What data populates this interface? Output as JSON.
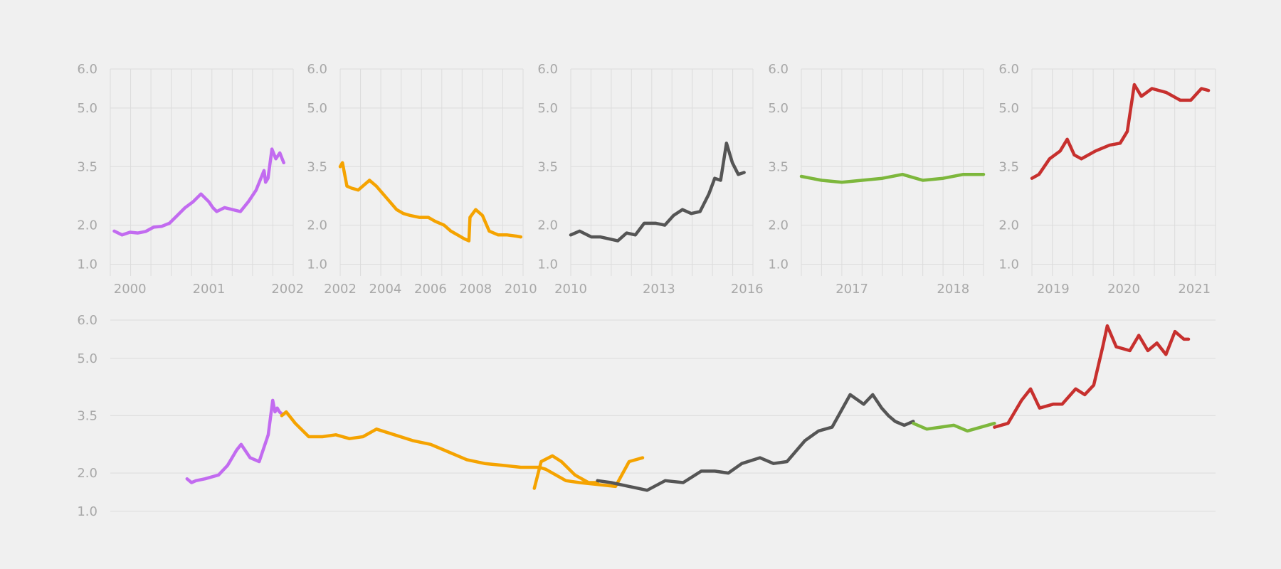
{
  "palette": [
    "#c26bf0",
    "#f5a300",
    "#555555",
    "#7db73c",
    "#c7302e"
  ],
  "chart_data": [
    {
      "type": "line",
      "panel": "small-1",
      "xlim": [
        1999.75,
        2002.07
      ],
      "ylim": [
        0.7,
        6.0
      ],
      "yticks": [
        1.0,
        2.0,
        3.5,
        5.0,
        6.0
      ],
      "xticks": [
        2000,
        2001,
        2002
      ],
      "grid": true,
      "series": [
        {
          "color": "#c26bf0",
          "x": [
            1999.8,
            1999.9,
            2000.0,
            2000.1,
            2000.2,
            2000.3,
            2000.4,
            2000.5,
            2000.6,
            2000.7,
            2000.8,
            2000.9,
            2001.0,
            2001.05,
            2001.1,
            2001.2,
            2001.3,
            2001.4,
            2001.5,
            2001.6,
            2001.7,
            2001.72,
            2001.75,
            2001.8,
            2001.85,
            2001.9,
            2001.95
          ],
          "y": [
            1.85,
            1.75,
            1.82,
            1.8,
            1.84,
            1.95,
            1.97,
            2.05,
            2.25,
            2.45,
            2.6,
            2.8,
            2.6,
            2.45,
            2.35,
            2.45,
            2.4,
            2.35,
            2.6,
            2.9,
            3.4,
            3.1,
            3.2,
            3.95,
            3.7,
            3.85,
            3.6
          ]
        }
      ]
    },
    {
      "type": "line",
      "panel": "small-2",
      "xlim": [
        2002.0,
        2010.1
      ],
      "ylim": [
        0.7,
        6.0
      ],
      "yticks": [
        1.0,
        2.0,
        3.5,
        5.0,
        6.0
      ],
      "xticks": [
        2002,
        2004,
        2006,
        2008,
        2010
      ],
      "grid": true,
      "series": [
        {
          "color": "#f5a300",
          "x": [
            2002.0,
            2002.1,
            2002.3,
            2002.5,
            2002.8,
            2003.0,
            2003.3,
            2003.6,
            2003.9,
            2004.2,
            2004.5,
            2004.8,
            2005.1,
            2005.5,
            2005.9,
            2006.2,
            2006.6,
            2006.9,
            2007.2,
            2007.5,
            2007.7,
            2007.75,
            2008.0,
            2008.3,
            2008.6,
            2009.0,
            2009.4,
            2009.8,
            2010.0
          ],
          "y": [
            3.5,
            3.6,
            3.0,
            2.95,
            2.9,
            3.0,
            3.15,
            3.0,
            2.8,
            2.6,
            2.4,
            2.3,
            2.25,
            2.2,
            2.2,
            2.1,
            2.0,
            1.85,
            1.75,
            1.65,
            1.6,
            2.2,
            2.4,
            2.25,
            1.85,
            1.75,
            1.75,
            1.72,
            1.7
          ]
        }
      ]
    },
    {
      "type": "line",
      "panel": "small-3",
      "xlim": [
        2010.0,
        2016.2
      ],
      "ylim": [
        0.7,
        6.0
      ],
      "yticks": [
        1.0,
        2.0,
        3.5,
        5.0,
        6.0
      ],
      "xticks": [
        2010,
        2013,
        2016
      ],
      "grid": true,
      "series": [
        {
          "color": "#555555",
          "x": [
            2010.0,
            2010.3,
            2010.7,
            2011.0,
            2011.3,
            2011.6,
            2011.9,
            2012.2,
            2012.5,
            2012.9,
            2013.2,
            2013.5,
            2013.8,
            2014.1,
            2014.4,
            2014.7,
            2014.9,
            2015.1,
            2015.3,
            2015.5,
            2015.7,
            2015.9
          ],
          "y": [
            1.75,
            1.85,
            1.7,
            1.7,
            1.65,
            1.6,
            1.8,
            1.75,
            2.05,
            2.05,
            2.0,
            2.25,
            2.4,
            2.3,
            2.35,
            2.8,
            3.2,
            3.15,
            4.1,
            3.6,
            3.3,
            3.35
          ]
        }
      ]
    },
    {
      "type": "line",
      "panel": "small-4",
      "xlim": [
        2016.5,
        2018.3
      ],
      "ylim": [
        0.7,
        6.0
      ],
      "yticks": [
        1.0,
        2.0,
        3.5,
        5.0,
        6.0
      ],
      "xticks": [
        2017,
        2018
      ],
      "grid": true,
      "series": [
        {
          "color": "#7db73c",
          "x": [
            2016.5,
            2016.7,
            2016.9,
            2017.1,
            2017.3,
            2017.5,
            2017.7,
            2017.9,
            2018.1,
            2018.3
          ],
          "y": [
            3.25,
            3.15,
            3.1,
            3.15,
            3.2,
            3.3,
            3.15,
            3.2,
            3.3,
            3.3
          ]
        }
      ]
    },
    {
      "type": "line",
      "panel": "small-5",
      "xlim": [
        2018.7,
        2021.3
      ],
      "ylim": [
        0.7,
        6.0
      ],
      "yticks": [
        1.0,
        2.0,
        3.5,
        5.0,
        6.0
      ],
      "xticks": [
        2019,
        2020,
        2021
      ],
      "grid": true,
      "series": [
        {
          "color": "#c7302e",
          "x": [
            2018.7,
            2018.8,
            2018.95,
            2019.1,
            2019.2,
            2019.3,
            2019.4,
            2019.6,
            2019.8,
            2019.95,
            2020.05,
            2020.15,
            2020.25,
            2020.4,
            2020.6,
            2020.8,
            2020.95,
            2021.1,
            2021.2
          ],
          "y": [
            3.2,
            3.3,
            3.7,
            3.9,
            4.2,
            3.8,
            3.7,
            3.9,
            4.05,
            4.1,
            4.4,
            5.6,
            5.3,
            5.5,
            5.4,
            5.2,
            5.2,
            5.5,
            5.45
          ]
        }
      ]
    },
    {
      "type": "line",
      "panel": "combined",
      "xlim": [
        1998.2,
        2022.7
      ],
      "ylim": [
        0.7,
        6.0
      ],
      "yticks": [
        1.0,
        2.0,
        3.5,
        5.0,
        6.0
      ],
      "xticks": [],
      "grid": "horizontal",
      "series": [
        {
          "color": "#c26bf0",
          "x": [
            1999.9,
            2000.0,
            2000.1,
            2000.3,
            2000.6,
            2000.8,
            2001.0,
            2001.1,
            2001.3,
            2001.5,
            2001.7,
            2001.8,
            2001.85,
            2001.9,
            2001.95,
            2002.0
          ],
          "y": [
            1.85,
            1.75,
            1.8,
            1.85,
            1.95,
            2.2,
            2.6,
            2.75,
            2.4,
            2.3,
            3.0,
            3.9,
            3.6,
            3.7,
            3.6,
            3.55
          ]
        },
        {
          "color": "#f5a300",
          "x": [
            2002.0,
            2002.1,
            2002.3,
            2002.6,
            2002.9,
            2003.2,
            2003.5,
            2003.8,
            2004.1,
            2004.5,
            2004.9,
            2005.3,
            2005.7,
            2006.1,
            2006.5,
            2006.9,
            2007.3,
            2007.7,
            2007.85,
            2008.0,
            2008.3,
            2008.6,
            2009.0,
            2009.4,
            2009.7,
            2010.0
          ],
          "y": [
            3.5,
            3.6,
            3.3,
            2.95,
            2.95,
            3.0,
            2.9,
            2.95,
            3.15,
            3.0,
            2.85,
            2.75,
            2.55,
            2.35,
            2.25,
            2.2,
            2.15,
            2.15,
            2.1,
            2.0,
            1.8,
            1.75,
            1.7,
            1.65,
            2.3,
            2.4
          ]
        },
        {
          "color": "#f5a300",
          "x": [
            2007.6,
            2007.75,
            2008.0,
            2008.2,
            2008.5,
            2008.8,
            2009.0
          ],
          "y": [
            1.6,
            2.3,
            2.45,
            2.3,
            1.95,
            1.75,
            1.75
          ]
        },
        {
          "color": "#555555",
          "x": [
            2009.0,
            2009.3,
            2009.7,
            2010.1,
            2010.5,
            2010.9,
            2011.3,
            2011.6,
            2011.9,
            2012.2,
            2012.6,
            2012.9,
            2013.2,
            2013.6,
            2013.9,
            2014.2,
            2014.6,
            2014.9,
            2015.1,
            2015.3,
            2015.45,
            2015.6,
            2015.8,
            2016.0
          ],
          "y": [
            1.8,
            1.75,
            1.65,
            1.55,
            1.8,
            1.75,
            2.05,
            2.05,
            2.0,
            2.25,
            2.4,
            2.25,
            2.3,
            2.85,
            3.1,
            3.2,
            4.05,
            3.8,
            4.05,
            3.7,
            3.5,
            3.35,
            3.25,
            3.35
          ]
        },
        {
          "color": "#7db73c",
          "x": [
            2016.0,
            2016.3,
            2016.6,
            2016.9,
            2017.2,
            2017.5,
            2017.8
          ],
          "y": [
            3.3,
            3.15,
            3.2,
            3.25,
            3.1,
            3.2,
            3.3
          ]
        },
        {
          "color": "#c7302e",
          "x": [
            2017.8,
            2018.1,
            2018.4,
            2018.6,
            2018.8,
            2019.1,
            2019.3,
            2019.6,
            2019.8,
            2020.0,
            2020.2,
            2020.3,
            2020.5,
            2020.8,
            2021.0,
            2021.2,
            2021.4,
            2021.6,
            2021.8,
            2022.0,
            2022.1
          ],
          "y": [
            3.2,
            3.3,
            3.9,
            4.2,
            3.7,
            3.8,
            3.8,
            4.2,
            4.05,
            4.3,
            5.3,
            5.85,
            5.3,
            5.2,
            5.6,
            5.2,
            5.4,
            5.1,
            5.7,
            5.5,
            5.5
          ]
        }
      ]
    }
  ]
}
